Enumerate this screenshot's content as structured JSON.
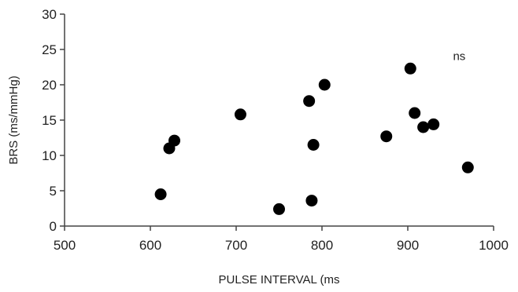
{
  "chart_data": {
    "type": "scatter",
    "title": "",
    "xlabel": "PULSE INTERVAL (ms",
    "ylabel": "BRS (ms/mmHg)",
    "xlim": [
      500,
      1000
    ],
    "ylim": [
      0,
      30
    ],
    "xticks": [
      500,
      600,
      700,
      800,
      900,
      1000
    ],
    "yticks": [
      0,
      5,
      10,
      15,
      20,
      25,
      30
    ],
    "grid": false,
    "annotations": [
      {
        "text": "ns",
        "x": 960,
        "y": 23.5
      }
    ],
    "series": [
      {
        "color": "#000000",
        "points": [
          {
            "x": 612,
            "y": 4.5
          },
          {
            "x": 622,
            "y": 11.0
          },
          {
            "x": 628,
            "y": 12.1
          },
          {
            "x": 705,
            "y": 15.8
          },
          {
            "x": 750,
            "y": 2.4
          },
          {
            "x": 785,
            "y": 17.7
          },
          {
            "x": 788,
            "y": 3.6
          },
          {
            "x": 790,
            "y": 11.5
          },
          {
            "x": 803,
            "y": 20.0
          },
          {
            "x": 875,
            "y": 12.7
          },
          {
            "x": 903,
            "y": 22.3
          },
          {
            "x": 908,
            "y": 16.0
          },
          {
            "x": 918,
            "y": 14.0
          },
          {
            "x": 930,
            "y": 14.4
          },
          {
            "x": 970,
            "y": 8.3
          }
        ]
      }
    ]
  }
}
